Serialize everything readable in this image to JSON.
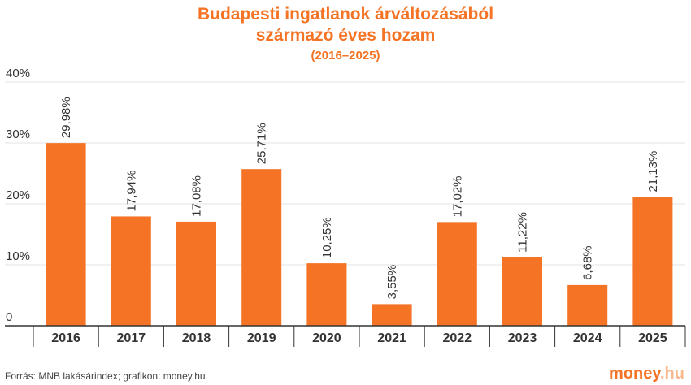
{
  "chart_data": {
    "type": "bar",
    "title_line1": "Budapesti ingatlanok árváltozásából",
    "title_line2": "származó éves hozam",
    "subtitle": "(2016–2025)",
    "categories": [
      "2016",
      "2017",
      "2018",
      "2019",
      "2020",
      "2021",
      "2022",
      "2023",
      "2024",
      "2025"
    ],
    "values": [
      29.98,
      17.94,
      17.08,
      25.71,
      10.25,
      3.55,
      17.02,
      11.22,
      6.68,
      21.13
    ],
    "value_labels": [
      "29,98%",
      "17,94%",
      "17,08%",
      "25,71%",
      "10,25%",
      "3,55%",
      "17,02%",
      "11,22%",
      "6,68%",
      "21,13%"
    ],
    "ylim": [
      0,
      40
    ],
    "yticks": [
      0,
      10,
      20,
      30,
      40
    ],
    "ytick_labels": [
      "0",
      "10%",
      "20%",
      "30%",
      "40%"
    ],
    "xlabel": "",
    "ylabel": "",
    "grid": true,
    "bar_color": "#F47324",
    "grid_color": "#E3E3E3"
  },
  "source_text": "Forrás: MNB lakásárindex; grafikon: money.hu",
  "brand": {
    "main": "money",
    "suffix": ".hu"
  }
}
